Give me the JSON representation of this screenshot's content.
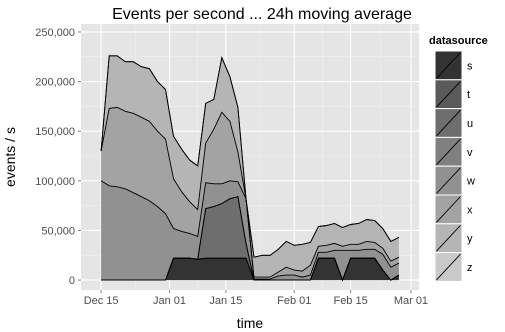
{
  "chart_data": {
    "type": "area",
    "stacked": true,
    "title": "Events per second ... 24h moving average",
    "xlabel": "time",
    "ylabel": "events / s",
    "x_ticks": [
      "Dec 15",
      "Jan 01",
      "Jan 15",
      "Feb 01",
      "Feb 15",
      "Mar 01"
    ],
    "y_ticks": [
      "0",
      "50,000",
      "100,000",
      "150,000",
      "200,000",
      "250,000"
    ],
    "x_domain": [
      "2011-12-10",
      "2012-03-03"
    ],
    "ylim": [
      -10000,
      258000
    ],
    "grid": true,
    "legend": {
      "title": "datasource",
      "position": "right",
      "entries": [
        "s",
        "t",
        "u",
        "v",
        "w",
        "x",
        "y",
        "z"
      ]
    },
    "cumulative_note": "",
    "x": [
      "2011-12-15",
      "2011-12-17",
      "2011-12-19",
      "2011-12-21",
      "2011-12-23",
      "2011-12-25",
      "2011-12-27",
      "2011-12-29",
      "2011-12-31",
      "2012-01-02",
      "2012-01-04",
      "2012-01-06",
      "2012-01-08",
      "2012-01-10",
      "2012-01-12",
      "2012-01-14",
      "2012-01-16",
      "2012-01-18",
      "2012-01-20",
      "2012-01-22",
      "2012-01-24",
      "2012-01-26",
      "2012-01-28",
      "2012-01-30",
      "2012-02-01",
      "2012-02-03",
      "2012-02-05",
      "2012-02-07",
      "2012-02-09",
      "2012-02-11",
      "2012-02-13",
      "2012-02-15",
      "2012-02-17",
      "2012-02-19",
      "2012-02-21",
      "2012-02-23",
      "2012-02-25",
      "2012-02-27"
    ],
    "series": [
      {
        "name": "s",
        "color": "#333333",
        "values": [
          0,
          0,
          0,
          0,
          0,
          0,
          0,
          0,
          0,
          22000,
          22000,
          22000,
          21000,
          22000,
          22000,
          22000,
          22000,
          22000,
          22000,
          0,
          0,
          0,
          0,
          0,
          0,
          0,
          0,
          22000,
          22000,
          22000,
          0,
          22000,
          22000,
          22000,
          22000,
          10000,
          0,
          5000
        ]
      },
      {
        "name": "t",
        "color": "#5a5a5a",
        "values": [
          0,
          0,
          0,
          0,
          0,
          0,
          0,
          0,
          0,
          0,
          0,
          0,
          0,
          0,
          0,
          0,
          0,
          0,
          0,
          0,
          0,
          0,
          0,
          0,
          0,
          0,
          0,
          0,
          0,
          0,
          0,
          0,
          0,
          0,
          0,
          0,
          0,
          0
        ]
      },
      {
        "name": "u",
        "color": "#6e6e6e",
        "values": [
          0,
          0,
          0,
          0,
          0,
          0,
          0,
          0,
          0,
          0,
          0,
          0,
          0,
          50000,
          52000,
          55000,
          60000,
          62000,
          15000,
          0,
          0,
          0,
          0,
          0,
          0,
          0,
          0,
          0,
          0,
          0,
          0,
          0,
          0,
          0,
          0,
          0,
          0,
          0
        ]
      },
      {
        "name": "v",
        "color": "#808080",
        "values": [
          0,
          0,
          0,
          0,
          0,
          0,
          0,
          0,
          0,
          0,
          0,
          0,
          0,
          0,
          0,
          0,
          0,
          0,
          0,
          0,
          0,
          0,
          0,
          0,
          0,
          0,
          0,
          0,
          0,
          0,
          0,
          0,
          0,
          0,
          0,
          0,
          0,
          0
        ]
      },
      {
        "name": "w",
        "color": "#919191",
        "values": [
          100000,
          95000,
          94000,
          92000,
          88000,
          84000,
          80000,
          74000,
          67000,
          30000,
          27000,
          25000,
          23000,
          26000,
          23000,
          20000,
          18000,
          15000,
          45000,
          1000,
          1000,
          1000,
          4000,
          5000,
          5000,
          3000,
          5000,
          6000,
          6000,
          8000,
          30000,
          8000,
          8000,
          9000,
          9000,
          16000,
          13000,
          12000
        ]
      },
      {
        "name": "x",
        "color": "#a3a3a3",
        "values": [
          30000,
          78000,
          80000,
          78000,
          80000,
          80000,
          80000,
          76000,
          75000,
          50000,
          40000,
          32000,
          27000,
          40000,
          55000,
          72000,
          60000,
          30000,
          0,
          2000,
          2000,
          2000,
          4000,
          8000,
          5000,
          6000,
          10000,
          6000,
          7000,
          7000,
          4000,
          6000,
          6000,
          8000,
          7000,
          6000,
          6000,
          6000
        ]
      },
      {
        "name": "y",
        "color": "#b5b5b5",
        "values": [
          0,
          53000,
          52000,
          50000,
          52000,
          51000,
          53000,
          50000,
          50000,
          43000,
          43000,
          42000,
          44000,
          40000,
          30000,
          55000,
          45000,
          45000,
          0,
          20000,
          22000,
          22000,
          23000,
          26000,
          25000,
          27000,
          23000,
          20000,
          20000,
          20000,
          19000,
          20000,
          21000,
          22000,
          22000,
          20000,
          20000,
          20000
        ]
      },
      {
        "name": "z",
        "color": "#c9c9c9",
        "values": [
          0,
          0,
          0,
          0,
          0,
          0,
          0,
          0,
          0,
          0,
          0,
          0,
          0,
          0,
          0,
          0,
          0,
          0,
          0,
          0,
          0,
          0,
          0,
          0,
          0,
          0,
          0,
          0,
          0,
          0,
          0,
          0,
          0,
          0,
          0,
          0,
          0,
          0
        ]
      }
    ]
  }
}
